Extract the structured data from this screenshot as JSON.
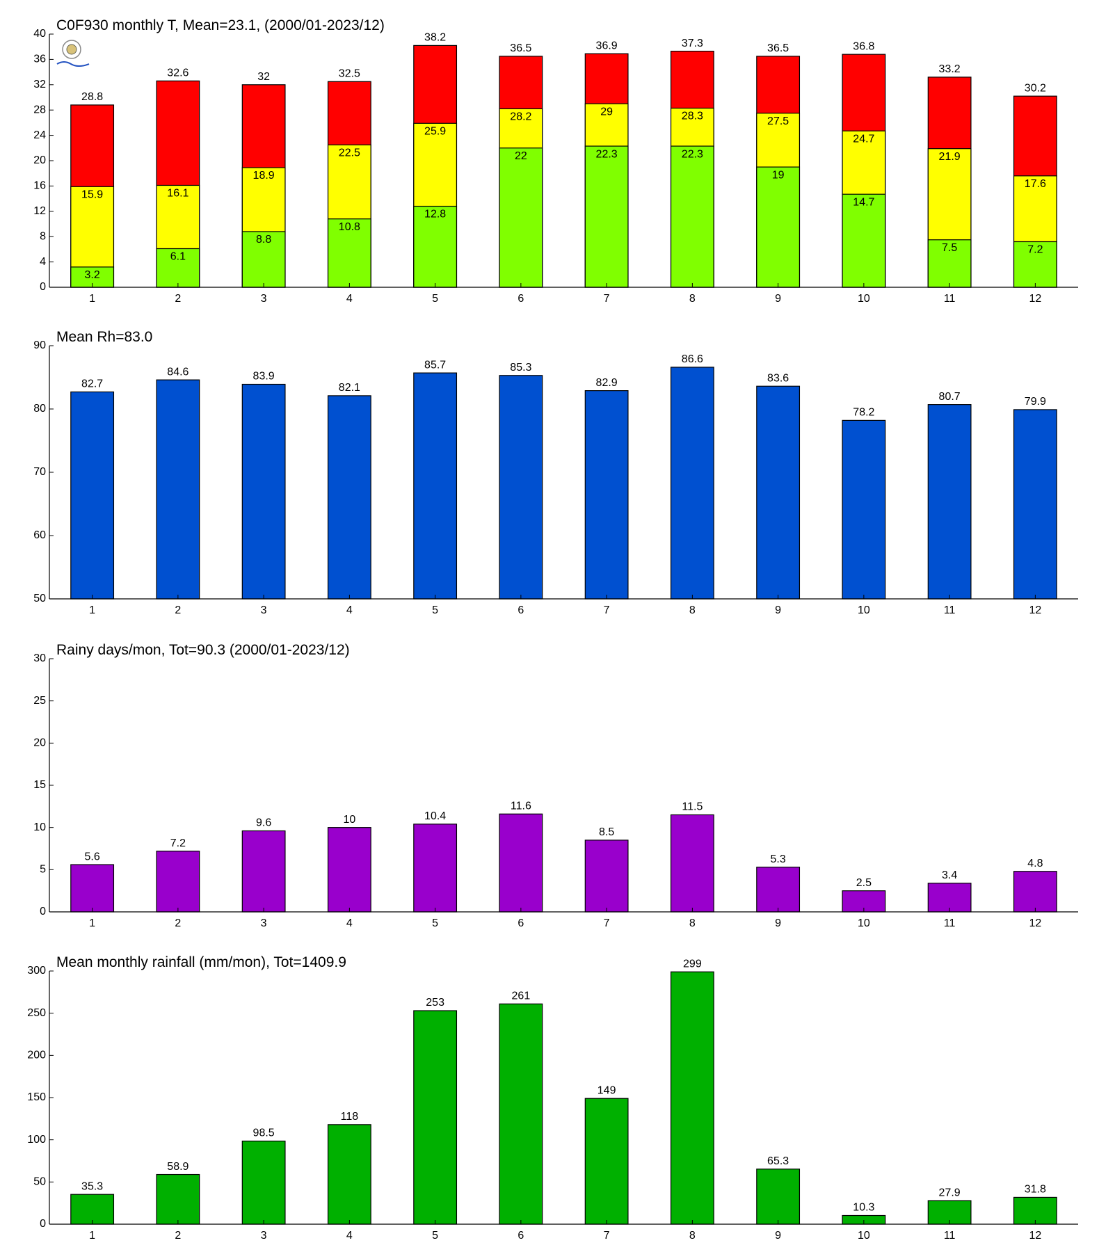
{
  "chart_data": [
    {
      "type": "bar",
      "barmode": "overlay",
      "title": "C0F930 monthly T, Mean=23.1, (2000/01-2023/12)",
      "categories": [
        1,
        2,
        3,
        4,
        5,
        6,
        7,
        8,
        9,
        10,
        11,
        12
      ],
      "series": [
        {
          "color": "#ff0000",
          "label_position": "above",
          "values": [
            28.8,
            32.6,
            32,
            32.5,
            38.2,
            36.5,
            36.9,
            37.3,
            36.5,
            36.8,
            33.2,
            30.2
          ]
        },
        {
          "color": "#ffff00",
          "label_position": "inside",
          "values": [
            15.9,
            16.1,
            18.9,
            22.5,
            25.9,
            28.2,
            29,
            28.3,
            27.5,
            24.7,
            21.9,
            17.6
          ]
        },
        {
          "color": "#80ff00",
          "label_position": "inside",
          "values": [
            3.2,
            6.1,
            8.8,
            10.8,
            12.8,
            22,
            22.3,
            22.3,
            19,
            14.7,
            7.5,
            7.2
          ]
        }
      ],
      "ylim": [
        0,
        40
      ],
      "yticks": [
        0,
        4,
        8,
        12,
        16,
        20,
        24,
        28,
        32,
        36,
        40
      ]
    },
    {
      "type": "bar",
      "title": "Mean Rh=83.0",
      "categories": [
        1,
        2,
        3,
        4,
        5,
        6,
        7,
        8,
        9,
        10,
        11,
        12
      ],
      "series": [
        {
          "color": "#0050d0",
          "label_position": "above",
          "values": [
            82.7,
            84.6,
            83.9,
            82.1,
            85.7,
            85.3,
            82.9,
            86.6,
            83.6,
            78.2,
            80.7,
            79.9
          ]
        }
      ],
      "ylim": [
        50,
        90
      ],
      "yticks": [
        50,
        60,
        70,
        80,
        90
      ]
    },
    {
      "type": "bar",
      "title": "Rainy days/mon, Tot=90.3 (2000/01-2023/12)",
      "categories": [
        1,
        2,
        3,
        4,
        5,
        6,
        7,
        8,
        9,
        10,
        11,
        12
      ],
      "series": [
        {
          "color": "#9900cc",
          "label_position": "above",
          "values": [
            5.6,
            7.2,
            9.6,
            10,
            10.4,
            11.6,
            8.5,
            11.5,
            5.3,
            2.5,
            3.4,
            4.8
          ]
        }
      ],
      "ylim": [
        0,
        30
      ],
      "yticks": [
        0,
        5,
        10,
        15,
        20,
        25,
        30
      ]
    },
    {
      "type": "bar",
      "title": "Mean monthly rainfall (mm/mon), Tot=1409.9",
      "categories": [
        1,
        2,
        3,
        4,
        5,
        6,
        7,
        8,
        9,
        10,
        11,
        12
      ],
      "series": [
        {
          "color": "#00b000",
          "label_position": "above",
          "values": [
            35.3,
            58.9,
            98.5,
            118,
            253,
            261,
            149,
            299,
            65.3,
            10.3,
            27.9,
            31.8
          ]
        }
      ],
      "ylim": [
        0,
        300
      ],
      "yticks": [
        0,
        50,
        100,
        150,
        200,
        250,
        300
      ]
    }
  ]
}
